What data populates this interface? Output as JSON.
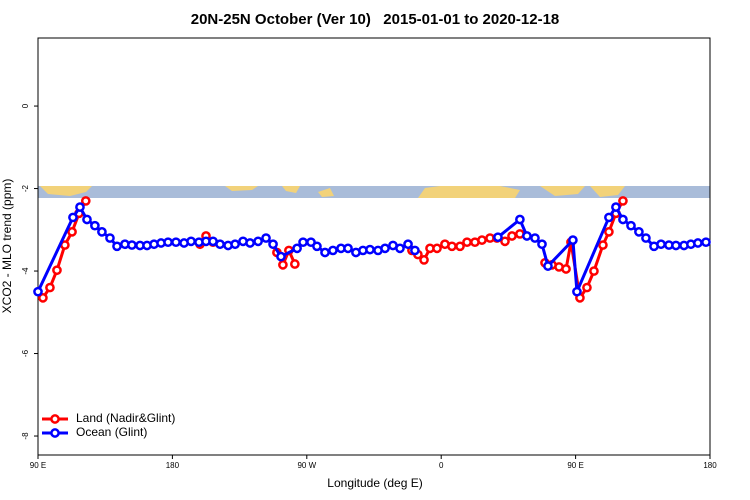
{
  "chart_data": {
    "type": "line",
    "title": "20N-25N October (Ver 10)   2015-01-01 to 2020-12-18",
    "x_label": "Longitude (deg E)",
    "y_label": "XCO2 - MLO trend (ppm)",
    "xlim": [
      90,
      540
    ],
    "ylim": [
      -8.46,
      1.65
    ],
    "xticks": [
      {
        "value": 90,
        "label": "90 E"
      },
      {
        "value": 180,
        "label": "180"
      },
      {
        "value": 270,
        "label": "90 W"
      },
      {
        "value": 360,
        "label": "0"
      },
      {
        "value": 450,
        "label": "90 E"
      },
      {
        "value": 540,
        "label": "180"
      }
    ],
    "yticks": [
      0,
      -2,
      -4,
      -6,
      -8
    ],
    "legend": "bottom-left",
    "series": [
      {
        "name": "Land (Nadir&Glint)",
        "color": "#ff0000",
        "x": [
          93.3,
          98,
          102.7,
          108,
          112.8,
          117.5,
          122,
          160,
          198.5,
          202.5,
          207.2,
          230,
          250,
          254,
          258,
          262,
          300,
          340.4,
          344.4,
          348.5,
          352.5,
          357.2,
          362.5,
          367.2,
          372.6,
          377.3,
          382.6,
          387.3,
          392.7,
          397.3,
          402.7,
          407.4,
          412.7,
          420,
          429.5,
          434.2,
          438.9,
          443.6,
          446.9,
          452.9,
          457.6,
          462.3,
          468.3,
          472.3,
          477,
          481.7
        ],
        "values": [
          -4.65,
          -4.4,
          -3.98,
          -3.37,
          -3.05,
          -2.6,
          -2.3,
          null,
          -3.35,
          -3.15,
          -3.3,
          null,
          -3.55,
          -3.85,
          -3.5,
          -3.83,
          null,
          -3.5,
          -3.6,
          -3.73,
          -3.45,
          -3.45,
          -3.35,
          -3.4,
          -3.4,
          -3.3,
          -3.3,
          -3.25,
          -3.2,
          -3.2,
          -3.28,
          -3.15,
          -3.1,
          null,
          -3.8,
          -3.85,
          -3.9,
          -3.95,
          -3.3,
          -4.65,
          -4.4,
          -4.0,
          -3.37,
          -3.05,
          -2.6,
          -2.3
        ]
      },
      {
        "name": "Ocean (Glint)",
        "color": "#0000ff",
        "x": [
          90,
          113.4,
          118.1,
          122.8,
          128.1,
          132.8,
          138.2,
          142.9,
          148.2,
          152.9,
          158.3,
          163,
          167.7,
          172.4,
          177.1,
          182.4,
          187.8,
          192.5,
          197.8,
          202.5,
          207.2,
          211.9,
          217.3,
          222,
          227.3,
          232,
          237.4,
          242.7,
          247.4,
          252.7,
          263.5,
          267.5,
          272.8,
          276.8,
          282.2,
          287.5,
          292.9,
          297.6,
          302.9,
          307.6,
          312.3,
          317.7,
          322.4,
          327.7,
          332.4,
          337.8,
          342.4,
          380,
          398,
          412.7,
          417.4,
          422.8,
          427.5,
          431.5,
          448.2,
          450.9,
          472.3,
          477,
          481.7,
          487.1,
          492.4,
          497.1,
          502.5,
          507.2,
          512.5,
          517.2,
          522.6,
          527.2,
          531.9,
          537.3
        ],
        "values": [
          -4.5,
          -2.7,
          -2.45,
          -2.75,
          -2.9,
          -3.05,
          -3.2,
          -3.4,
          -3.35,
          -3.37,
          -3.38,
          -3.38,
          -3.35,
          -3.32,
          -3.3,
          -3.3,
          -3.32,
          -3.28,
          -3.3,
          -3.28,
          -3.28,
          -3.35,
          -3.38,
          -3.35,
          -3.28,
          -3.32,
          -3.28,
          -3.2,
          -3.35,
          -3.65,
          -3.45,
          -3.3,
          -3.3,
          -3.4,
          -3.55,
          -3.5,
          -3.45,
          -3.45,
          -3.55,
          -3.5,
          -3.48,
          -3.5,
          -3.45,
          -3.38,
          -3.45,
          -3.35,
          -3.5,
          null,
          -3.18,
          -2.75,
          -3.15,
          -3.2,
          -3.35,
          -3.88,
          -3.25,
          -4.5,
          -2.7,
          -2.45,
          -2.75,
          -2.9,
          -3.05,
          -3.2,
          -3.4,
          -3.35,
          -3.37,
          -3.38,
          -3.38,
          -3.35,
          -3.32,
          -3.3
        ]
      }
    ]
  }
}
